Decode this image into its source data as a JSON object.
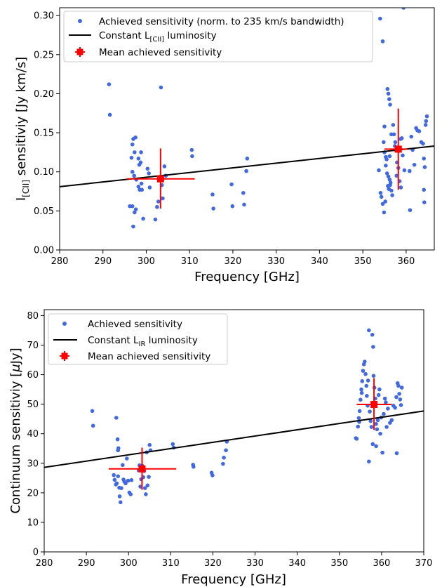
{
  "chart_data": [
    {
      "type": "scatter",
      "xlabel": "Frequency [GHz]",
      "ylabel": {
        "prefix": "I",
        "sub": "[CII]",
        "suffix": " sensitiviy [Jy km/s]"
      },
      "xlim": [
        280,
        366.5
      ],
      "ylim": [
        0,
        0.31
      ],
      "xticks": [
        "280",
        "290",
        "300",
        "310",
        "320",
        "330",
        "340",
        "350",
        "360"
      ],
      "yticks": [
        "0.00",
        "0.05",
        "0.10",
        "0.15",
        "0.20",
        "0.25",
        "0.30"
      ],
      "xtick_values": [
        280,
        290,
        300,
        310,
        320,
        330,
        340,
        350,
        360
      ],
      "ytick_values": [
        0.0,
        0.05,
        0.1,
        0.15,
        0.2,
        0.25,
        0.3
      ],
      "legend_placement": "top-left",
      "legend": [
        {
          "kind": "points",
          "text": "Achieved sensitivity (norm. to 235 km/s bandwidth)"
        },
        {
          "kind": "line",
          "text": "Constant L",
          "sub": "[CII]",
          "suffix": " luminosity"
        },
        {
          "kind": "mean",
          "text": "Mean achieved sensitivity"
        }
      ],
      "series": [
        {
          "kind": "points",
          "color": "#4169e1",
          "points": [
            [
              291.4,
              0.212
            ],
            [
              291.6,
              0.173
            ],
            [
              296.6,
              0.118
            ],
            [
              296.8,
              0.135
            ],
            [
              297.0,
              0.142
            ],
            [
              297.3,
              0.125
            ],
            [
              297.5,
              0.144
            ],
            [
              296.8,
              0.1
            ],
            [
              297.2,
              0.095
            ],
            [
              297.7,
              0.09
            ],
            [
              296.2,
              0.056
            ],
            [
              296.8,
              0.056
            ],
            [
              297.0,
              0.03
            ],
            [
              297.3,
              0.048
            ],
            [
              297.6,
              0.052
            ],
            [
              298.2,
              0.081
            ],
            [
              298.5,
              0.077
            ],
            [
              298.9,
              0.085
            ],
            [
              298.4,
              0.109
            ],
            [
              298.7,
              0.112
            ],
            [
              298.8,
              0.125
            ],
            [
              298.2,
              0.117
            ],
            [
              299.0,
              0.077
            ],
            [
              299.3,
              0.04
            ],
            [
              300.3,
              0.104
            ],
            [
              300.6,
              0.098
            ],
            [
              300.8,
              0.08
            ],
            [
              302.1,
              0.039
            ],
            [
              302.5,
              0.055
            ],
            [
              302.8,
              0.062
            ],
            [
              303.1,
              0.09
            ],
            [
              303.4,
              0.208
            ],
            [
              303.6,
              0.083
            ],
            [
              303.8,
              0.066
            ],
            [
              304.2,
              0.107
            ],
            [
              304.5,
              0.095
            ],
            [
              310.5,
              0.128
            ],
            [
              310.6,
              0.12
            ],
            [
              315.3,
              0.071
            ],
            [
              315.5,
              0.053
            ],
            [
              319.7,
              0.084
            ],
            [
              319.9,
              0.056
            ],
            [
              322.4,
              0.073
            ],
            [
              322.6,
              0.058
            ],
            [
              323.1,
              0.101
            ],
            [
              323.3,
              0.117
            ],
            [
              354.0,
              0.296
            ],
            [
              354.6,
              0.267
            ],
            [
              354.8,
              0.138
            ],
            [
              355.0,
              0.125
            ],
            [
              355.3,
              0.119
            ],
            [
              355.5,
              0.116
            ],
            [
              355.7,
              0.206
            ],
            [
              355.9,
              0.2
            ],
            [
              356.1,
              0.193
            ],
            [
              356.3,
              0.186
            ],
            [
              355.3,
              0.108
            ],
            [
              355.6,
              0.098
            ],
            [
              355.9,
              0.094
            ],
            [
              356.2,
              0.09
            ],
            [
              356.4,
              0.086
            ],
            [
              355.8,
              0.082
            ],
            [
              356.0,
              0.078
            ],
            [
              356.3,
              0.083
            ],
            [
              356.6,
              0.076
            ],
            [
              356.8,
              0.07
            ],
            [
              354.1,
              0.073
            ],
            [
              354.3,
              0.068
            ],
            [
              354.6,
              0.059
            ],
            [
              354.9,
              0.048
            ],
            [
              355.2,
              0.062
            ],
            [
              357.0,
              0.16
            ],
            [
              357.2,
              0.148
            ],
            [
              357.4,
              0.133
            ],
            [
              357.7,
              0.127
            ],
            [
              357.9,
              0.112
            ],
            [
              358.2,
              0.105
            ],
            [
              358.5,
              0.088
            ],
            [
              358.8,
              0.08
            ],
            [
              359.0,
              0.143
            ],
            [
              359.2,
              0.121
            ],
            [
              359.4,
              0.31
            ],
            [
              359.6,
              0.102
            ],
            [
              360.8,
              0.101
            ],
            [
              360.9,
              0.051
            ],
            [
              361.2,
              0.145
            ],
            [
              361.5,
              0.128
            ],
            [
              361.9,
              0.109
            ],
            [
              362.3,
              0.156
            ],
            [
              362.6,
              0.153
            ],
            [
              363.5,
              0.138
            ],
            [
              363.9,
              0.136
            ],
            [
              364.1,
              0.117
            ],
            [
              364.3,
              0.106
            ],
            [
              364.1,
              0.077
            ],
            [
              364.2,
              0.061
            ],
            [
              364.5,
              0.16
            ],
            [
              364.6,
              0.165
            ],
            [
              364.8,
              0.171
            ],
            [
              356.6,
              0.148
            ],
            [
              357.5,
              0.138
            ],
            [
              353.7,
              0.102
            ],
            [
              355.0,
              0.158
            ],
            [
              356.2,
              0.12
            ],
            [
              357.8,
              0.095
            ],
            [
              358.7,
              0.142
            ],
            [
              363.0,
              0.152
            ]
          ]
        },
        {
          "kind": "line",
          "color": "#000000",
          "x": [
            280,
            366.5
          ],
          "y": [
            0.081,
            0.133
          ]
        },
        {
          "kind": "mean",
          "color": "#ff0000",
          "points": [
            {
              "x": 303.3,
              "y": 0.091,
              "xerr": [
                295.5,
                311.2
              ],
              "yerr": [
                0.053,
                0.13
              ]
            },
            {
              "x": 358.2,
              "y": 0.129,
              "xerr": [
                355.0,
                360.3
              ],
              "yerr": [
                0.077,
                0.181
              ]
            }
          ]
        }
      ]
    },
    {
      "type": "scatter",
      "xlabel": "Frequency [GHz]",
      "ylabel": {
        "prefix": "Continuum sensitiviy [",
        "mu": "μ",
        "suffix": "Jy]"
      },
      "xlim": [
        280,
        370
      ],
      "ylim": [
        0,
        82
      ],
      "xticks": [
        "280",
        "290",
        "300",
        "310",
        "320",
        "330",
        "340",
        "350",
        "360",
        "370"
      ],
      "yticks": [
        "0",
        "10",
        "20",
        "30",
        "40",
        "50",
        "60",
        "70",
        "80"
      ],
      "xtick_values": [
        280,
        290,
        300,
        310,
        320,
        330,
        340,
        350,
        360,
        370
      ],
      "ytick_values": [
        0,
        10,
        20,
        30,
        40,
        50,
        60,
        70,
        80
      ],
      "legend_placement": "top-left",
      "legend": [
        {
          "kind": "points",
          "text": "Achieved sensitivity"
        },
        {
          "kind": "line",
          "text": "Constant L",
          "sub": "IR",
          "suffix": " luminosity"
        },
        {
          "kind": "mean",
          "text": "Mean achieved sensitivity"
        }
      ],
      "series": [
        {
          "kind": "points",
          "color": "#4169e1",
          "points": [
            [
              291.4,
              47.7
            ],
            [
              291.6,
              42.7
            ],
            [
              296.5,
              26.0
            ],
            [
              296.7,
              24.4
            ],
            [
              297.0,
              22.8
            ],
            [
              297.2,
              23.2
            ],
            [
              297.4,
              38.1
            ],
            [
              297.1,
              45.4
            ],
            [
              297.5,
              34.4
            ],
            [
              297.6,
              35.1
            ],
            [
              297.5,
              25.6
            ],
            [
              297.8,
              21.7
            ],
            [
              297.9,
              18.8
            ],
            [
              298.1,
              16.8
            ],
            [
              298.3,
              21.6
            ],
            [
              298.6,
              29.4
            ],
            [
              298.8,
              24.5
            ],
            [
              299.0,
              23.8
            ],
            [
              299.3,
              23.2
            ],
            [
              299.6,
              31.6
            ],
            [
              299.9,
              24.1
            ],
            [
              300.2,
              20.1
            ],
            [
              300.5,
              19.5
            ],
            [
              300.7,
              24.3
            ],
            [
              302.4,
              27.6
            ],
            [
              302.6,
              29.3
            ],
            [
              302.8,
              22.1
            ],
            [
              303.0,
              24.6
            ],
            [
              303.2,
              29.2
            ],
            [
              303.5,
              25.3
            ],
            [
              303.7,
              27.4
            ],
            [
              303.9,
              21.6
            ],
            [
              304.1,
              19.5
            ],
            [
              304.3,
              33.7
            ],
            [
              304.5,
              22.5
            ],
            [
              304.8,
              25.4
            ],
            [
              305.0,
              36.2
            ],
            [
              305.2,
              34.4
            ],
            [
              310.5,
              36.5
            ],
            [
              310.7,
              35.3
            ],
            [
              315.3,
              29.5
            ],
            [
              315.4,
              28.8
            ],
            [
              319.7,
              26.8
            ],
            [
              319.9,
              25.9
            ],
            [
              322.4,
              29.8
            ],
            [
              322.6,
              31.9
            ],
            [
              323.1,
              34.4
            ],
            [
              323.3,
              37.3
            ],
            [
              353.9,
              38.5
            ],
            [
              354.1,
              38.3
            ],
            [
              354.4,
              42.4
            ],
            [
              354.6,
              45.3
            ],
            [
              354.8,
              47.7
            ],
            [
              355.0,
              51.5
            ],
            [
              355.2,
              55.0
            ],
            [
              355.4,
              57.8
            ],
            [
              355.6,
              61.3
            ],
            [
              355.8,
              63.5
            ],
            [
              356.0,
              64.4
            ],
            [
              356.2,
              60.2
            ],
            [
              356.4,
              56.2
            ],
            [
              356.5,
              52.8
            ],
            [
              356.7,
              49.5
            ],
            [
              357.0,
              75.0
            ],
            [
              357.2,
              47.5
            ],
            [
              357.4,
              44.3
            ],
            [
              357.6,
              42.3
            ],
            [
              357.8,
              73.5
            ],
            [
              358.0,
              69.4
            ],
            [
              358.1,
              59.6
            ],
            [
              358.3,
              55.6
            ],
            [
              358.5,
              51.9
            ],
            [
              358.7,
              43.3
            ],
            [
              358.9,
              41.5
            ],
            [
              359.1,
              44.6
            ],
            [
              359.3,
              53.1
            ],
            [
              359.5,
              55.0
            ],
            [
              359.7,
              40.0
            ],
            [
              359.9,
              45.5
            ],
            [
              360.2,
              33.6
            ],
            [
              360.5,
              46.7
            ],
            [
              360.8,
              51.9
            ],
            [
              361.0,
              50.6
            ],
            [
              361.2,
              42.3
            ],
            [
              361.5,
              48.5
            ],
            [
              362.0,
              43.7
            ],
            [
              362.4,
              44.6
            ],
            [
              362.8,
              49.5
            ],
            [
              363.2,
              48.8
            ],
            [
              363.5,
              52.4
            ],
            [
              363.8,
              57.1
            ],
            [
              364.0,
              56.2
            ],
            [
              364.2,
              53.5
            ],
            [
              364.4,
              51.6
            ],
            [
              364.6,
              49.7
            ],
            [
              364.8,
              55.6
            ],
            [
              363.6,
              33.4
            ],
            [
              357.0,
              30.6
            ],
            [
              357.9,
              36.5
            ],
            [
              358.7,
              35.8
            ],
            [
              355.3,
              53.8
            ],
            [
              356.8,
              58.0
            ],
            [
              354.7,
              44.0
            ]
          ]
        },
        {
          "kind": "line",
          "color": "#000000",
          "x": [
            280,
            370
          ],
          "y": [
            28.6,
            47.7
          ]
        },
        {
          "kind": "mean",
          "color": "#ff0000",
          "points": [
            {
              "x": 303.2,
              "y": 28.1,
              "xerr": [
                295.3,
                311.3
              ],
              "yerr": [
                21.0,
                35.3
              ]
            },
            {
              "x": 358.2,
              "y": 49.9,
              "xerr": [
                354.1,
                362.4
              ],
              "yerr": [
                41.3,
                58.8
              ]
            }
          ]
        }
      ]
    }
  ]
}
